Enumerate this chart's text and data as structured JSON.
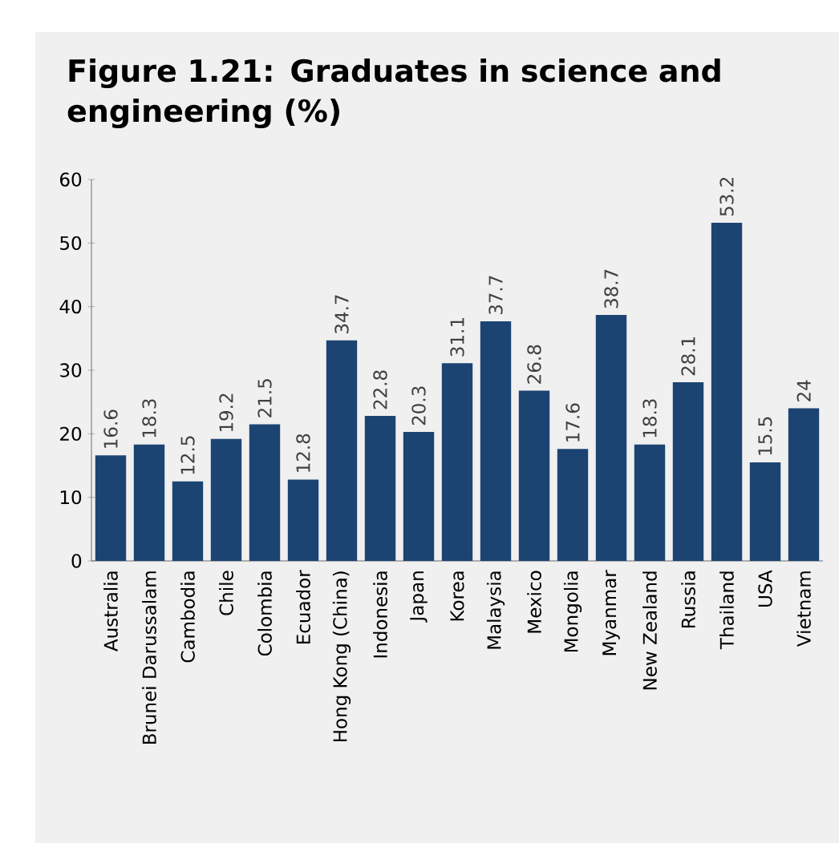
{
  "chart_data": {
    "type": "bar",
    "title": "Figure 1.21: Graduates in science and engineering (%)",
    "categories": [
      "Australia",
      "Brunei Darussalam",
      "Cambodia",
      "Chile",
      "Colombia",
      "Ecuador",
      "Hong Kong (China)",
      "Indonesia",
      "Japan",
      "Korea",
      "Malaysia",
      "Mexico",
      "Mongolia",
      "Myanmar",
      "New Zealand",
      "Russia",
      "Thailand",
      "USA",
      "Vietnam"
    ],
    "values": [
      16.6,
      18.3,
      12.5,
      19.2,
      21.5,
      12.8,
      34.7,
      22.8,
      20.3,
      31.1,
      37.7,
      26.8,
      17.6,
      38.7,
      18.3,
      28.1,
      53.2,
      15.5,
      24
    ],
    "color": "#1b4472",
    "ylim": [
      0,
      60
    ],
    "yticks": [
      0,
      10,
      20,
      30,
      40,
      50,
      60
    ],
    "grid": false,
    "data_labels": true
  }
}
